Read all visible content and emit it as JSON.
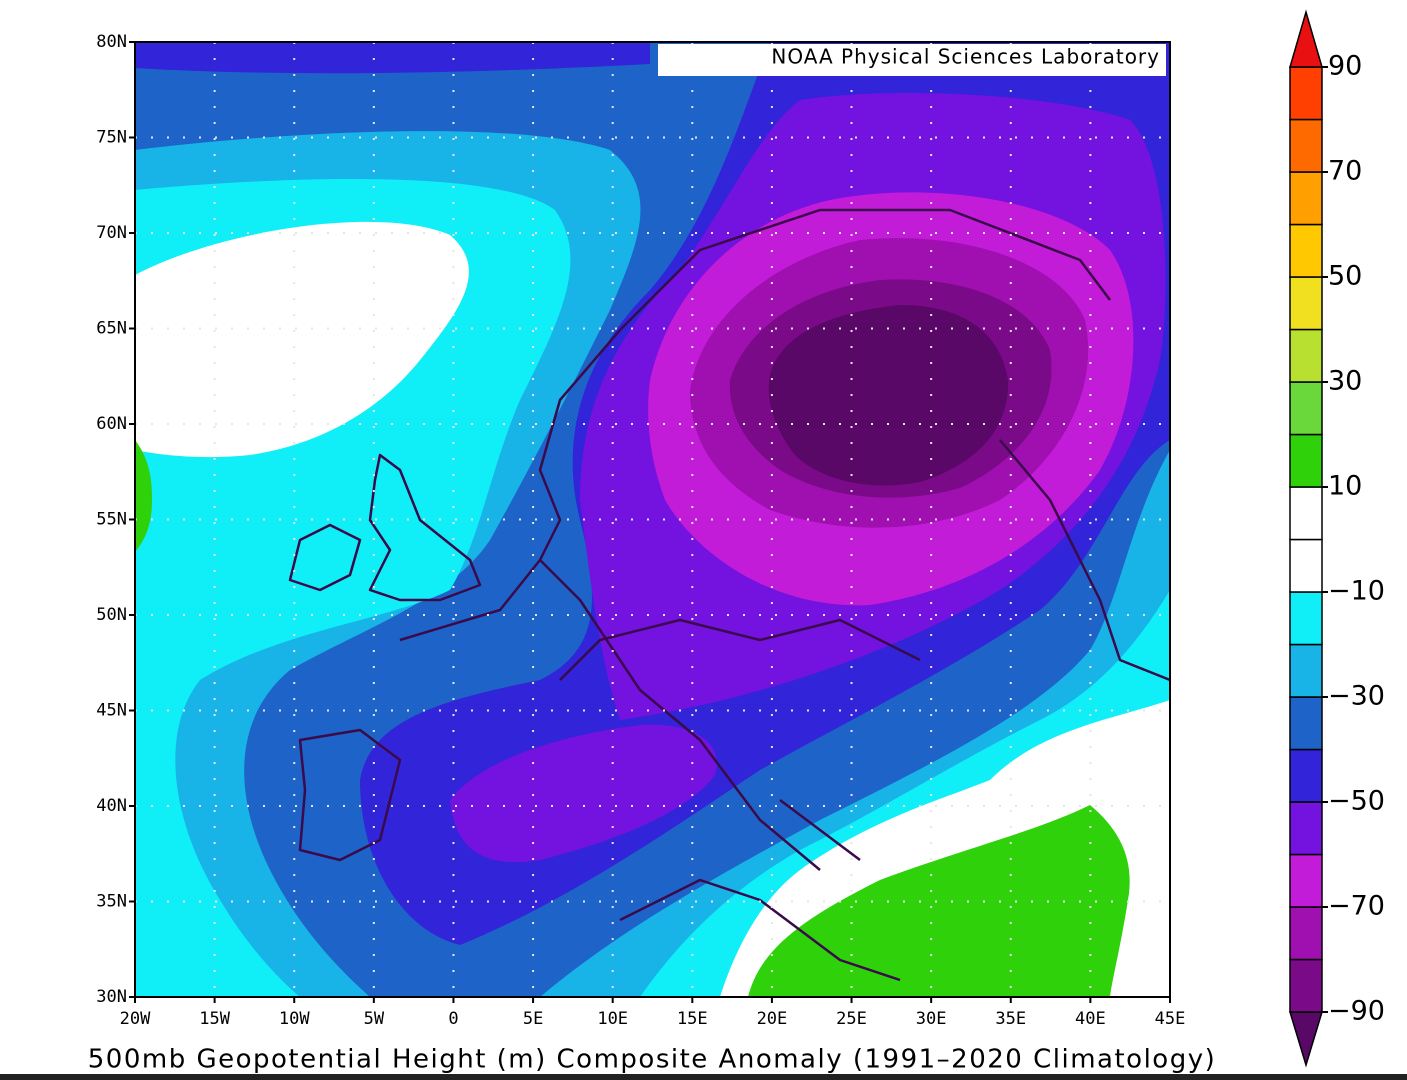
{
  "chart_data": {
    "type": "contour-map",
    "title": "500mb Geopotential Height (m) Composite Anomaly (1991–2020 Climatology)",
    "credit": "NOAA Physical Sciences Laboratory",
    "xlim": [
      -20,
      45
    ],
    "ylim": [
      30,
      80
    ],
    "xticks": [
      {
        "value": -20,
        "label": "20W"
      },
      {
        "value": -15,
        "label": "15W"
      },
      {
        "value": -10,
        "label": "10W"
      },
      {
        "value": -5,
        "label": "5W"
      },
      0,
      {
        "value": 5,
        "label": "5E"
      },
      {
        "value": 10,
        "label": "10E"
      },
      {
        "value": 15,
        "label": "15E"
      },
      {
        "value": 20,
        "label": "20E"
      },
      {
        "value": 25,
        "label": "25E"
      },
      {
        "value": 30,
        "label": "30E"
      },
      {
        "value": 35,
        "label": "35E"
      },
      {
        "value": 40,
        "label": "40E"
      },
      {
        "value": 45,
        "label": "45E"
      }
    ],
    "yticks": [
      {
        "value": 30,
        "label": "30N"
      },
      {
        "value": 35,
        "label": "35N"
      },
      {
        "value": 40,
        "label": "40N"
      },
      {
        "value": 45,
        "label": "45N"
      },
      {
        "value": 50,
        "label": "50N"
      },
      {
        "value": 55,
        "label": "55N"
      },
      {
        "value": 60,
        "label": "60N"
      },
      {
        "value": 65,
        "label": "65N"
      },
      {
        "value": 70,
        "label": "70N"
      },
      {
        "value": 75,
        "label": "75N"
      },
      {
        "value": 80,
        "label": "80N"
      }
    ],
    "grid": true,
    "colorbar": {
      "ticks": [
        90,
        70,
        50,
        30,
        10,
        {
          "value": -10,
          "label": "−10"
        },
        {
          "value": -30,
          "label": "−30"
        },
        {
          "value": -50,
          "label": "−50"
        },
        {
          "value": -70,
          "label": "−70"
        },
        {
          "value": -90,
          "label": "−90"
        }
      ],
      "colors": [
        "#5a0868",
        "#7a0a88",
        "#a010b0",
        "#c21cd8",
        "#7412e0",
        "#3224d8",
        "#1e64c8",
        "#18b4e8",
        "#10eef8",
        "#ffffff",
        "#ffffff",
        "#2ed10a",
        "#6ad83a",
        "#b8e030",
        "#f0e020",
        "#ffc800",
        "#ffa000",
        "#ff6a00",
        "#ff4000",
        "#e81010"
      ]
    }
  }
}
